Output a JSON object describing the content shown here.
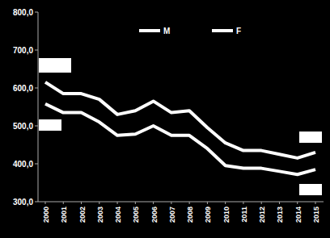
{
  "chart_data": {
    "type": "line",
    "categories": [
      "2000",
      "2001",
      "2002",
      "2003",
      "2004",
      "2005",
      "2006",
      "2007",
      "2008",
      "2009",
      "2010",
      "2011",
      "2012",
      "2013",
      "2014",
      "2015"
    ],
    "series": [
      {
        "name": "M",
        "color": "#ffffff",
        "values": [
          615,
          585,
          585,
          570,
          530,
          540,
          565,
          535,
          540,
          495,
          455,
          435,
          435,
          425,
          415,
          430
        ]
      },
      {
        "name": "F",
        "color": "#ffffff",
        "values": [
          558,
          535,
          535,
          510,
          475,
          478,
          500,
          475,
          475,
          440,
          395,
          388,
          388,
          380,
          372,
          385
        ]
      }
    ],
    "ylim": [
      300,
      800
    ],
    "yticks": [
      {
        "value": 300,
        "label": "300,0"
      },
      {
        "value": 400,
        "label": "400,0"
      },
      {
        "value": 500,
        "label": "500,0"
      },
      {
        "value": 600,
        "label": "600,0"
      },
      {
        "value": 700,
        "label": "700,0"
      },
      {
        "value": 800,
        "label": "800,0"
      }
    ],
    "grid": false,
    "legend": "top"
  }
}
